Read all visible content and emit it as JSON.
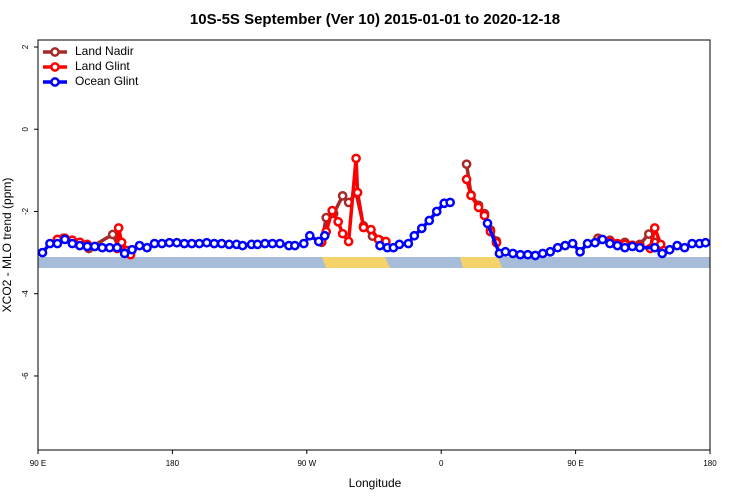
{
  "chart_data": {
    "type": "line",
    "title": "10S-5S September (Ver 10)   2015-01-01 to 2020-12-18",
    "xlabel": "Longitude",
    "ylabel": "XCO2 - MLO trend (ppm)",
    "xlim": [
      90,
      540
    ],
    "ylim": [
      -7.8,
      2.17
    ],
    "xticks": [
      {
        "value": 90,
        "label": "90 E"
      },
      180,
      {
        "value": 270,
        "label": "90 W"
      },
      {
        "value": 360,
        "label": "0"
      },
      {
        "value": 450,
        "label": "90 E"
      },
      {
        "value": 540,
        "label": "180"
      }
    ],
    "yticks": [
      2,
      0,
      -2,
      -4,
      -6
    ],
    "legend": "top-left",
    "series": [
      {
        "name": "Land Nadir",
        "color": "#a52a2a",
        "x": [
          103,
          107,
          113,
          118,
          124,
          140,
          144,
          148,
          null,
          280,
          283,
          288,
          294,
          298,
          303,
          308,
          314,
          319,
          null,
          377,
          380,
          385,
          389,
          393,
          397,
          null,
          465,
          473,
          483,
          493,
          499,
          503,
          508
        ],
        "values": [
          -2.68,
          -2.65,
          -2.7,
          -2.75,
          -2.9,
          -2.56,
          -2.85,
          -2.95,
          null,
          -2.75,
          -2.15,
          -2.05,
          -1.62,
          -1.78,
          -1.55,
          -2.35,
          -2.6,
          -2.7,
          null,
          -0.85,
          -1.6,
          -1.85,
          -2.05,
          -2.45,
          -2.72,
          null,
          -2.65,
          -2.7,
          -2.75,
          -2.8,
          -2.55,
          -2.75,
          -2.95
        ]
      },
      {
        "name": "Land Glint",
        "color": "#ff0000",
        "x": [
          103,
          108,
          113,
          118,
          123,
          128,
          143,
          144,
          146,
          150,
          152,
          null,
          280,
          283,
          287,
          291,
          294,
          298,
          303,
          304,
          308,
          313,
          318,
          323,
          null,
          377,
          380,
          385,
          389,
          393,
          397,
          null,
          467,
          473,
          478,
          483,
          488,
          493,
          500,
          503,
          507,
          509
        ],
        "values": [
          -2.68,
          -2.65,
          -2.7,
          -2.75,
          -2.8,
          -2.85,
          -2.9,
          -2.4,
          -2.75,
          -2.95,
          -3.05,
          null,
          -2.73,
          -2.49,
          -1.98,
          -2.25,
          -2.54,
          -2.73,
          -0.71,
          -1.54,
          -2.39,
          -2.44,
          -2.68,
          -2.73,
          null,
          -1.22,
          -1.61,
          -1.9,
          -2.1,
          -2.49,
          -2.76,
          null,
          -2.68,
          -2.73,
          -2.78,
          -2.8,
          -2.82,
          -2.85,
          -2.9,
          -2.4,
          -2.8,
          -2.95
        ]
      },
      {
        "name": "Ocean Glint",
        "color": "#0000ff",
        "x": [
          93,
          98,
          103,
          108,
          113,
          118,
          123,
          128,
          133,
          138,
          143,
          148,
          153,
          158,
          163,
          168,
          173,
          178,
          183,
          188,
          193,
          198,
          203,
          208,
          213,
          218,
          223,
          227,
          233,
          237,
          242,
          247,
          252,
          258,
          262,
          268,
          272,
          278,
          282,
          null,
          319,
          324,
          328,
          332,
          338,
          342,
          347,
          352,
          357,
          362,
          366,
          null,
          391,
          399,
          403,
          408,
          413,
          418,
          423,
          428,
          433,
          438,
          443,
          448,
          453,
          458,
          463,
          468,
          473,
          478,
          483,
          488,
          493,
          503,
          508,
          513,
          518,
          523,
          528,
          533,
          537
        ],
        "values": [
          -3.0,
          -2.78,
          -2.78,
          -2.68,
          -2.78,
          -2.83,
          -2.85,
          -2.85,
          -2.88,
          -2.88,
          -2.88,
          -3.02,
          -2.93,
          -2.83,
          -2.88,
          -2.78,
          -2.78,
          -2.76,
          -2.76,
          -2.78,
          -2.78,
          -2.78,
          -2.76,
          -2.78,
          -2.78,
          -2.8,
          -2.8,
          -2.83,
          -2.8,
          -2.8,
          -2.78,
          -2.78,
          -2.78,
          -2.83,
          -2.83,
          -2.78,
          -2.59,
          -2.73,
          -2.59,
          null,
          -2.83,
          -2.88,
          -2.88,
          -2.8,
          -2.78,
          -2.59,
          -2.41,
          -2.22,
          -2.0,
          -1.8,
          -1.78,
          null,
          -2.29,
          -3.02,
          -2.98,
          -3.02,
          -3.05,
          -3.05,
          -3.07,
          -3.02,
          -2.98,
          -2.88,
          -2.83,
          -2.78,
          -2.98,
          -2.78,
          -2.76,
          -2.68,
          -2.78,
          -2.83,
          -2.88,
          -2.85,
          -2.88,
          -2.88,
          -3.02,
          -2.93,
          -2.83,
          -2.88,
          -2.78,
          -2.78,
          -2.76
        ]
      }
    ]
  }
}
